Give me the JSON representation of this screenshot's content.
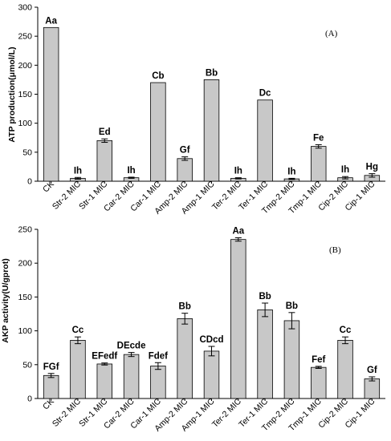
{
  "chart_data": [
    {
      "type": "bar",
      "panel_label": "(A)",
      "ylabel": "ATP production(μmol/L)",
      "ylim": [
        0,
        300
      ],
      "yticks": [
        "0",
        "50",
        "100",
        "150",
        "200",
        "250",
        "300"
      ],
      "categories": [
        "CK",
        "Str-2 MIC",
        "Str-1 MIC",
        "Car-2 MIC",
        "Car-1 MIC",
        "Amp-2 MIC",
        "Amp-1 MIC",
        "Ter-2 MIC",
        "Ter-1 MIC",
        "Tmp-2 MIC",
        "Tmp-1 MIC",
        "Cip-2 MIC",
        "Cip-1 MIC"
      ],
      "values": [
        265,
        5,
        70,
        6,
        170,
        39,
        175,
        5,
        140,
        4,
        60,
        6,
        10
      ],
      "errors": [
        0,
        1.5,
        3,
        1,
        0,
        3,
        0,
        1,
        0,
        1,
        3,
        2,
        3
      ],
      "letters": [
        "Aa",
        "Ih",
        "Ed",
        "Ih",
        "Cb",
        "Gf",
        "Bb",
        "Ih",
        "Dc",
        "Ih",
        "Fe",
        "Ih",
        "Hg"
      ],
      "bar_color": "#c8c8c8"
    },
    {
      "type": "bar",
      "panel_label": "(B)",
      "ylabel": "AKP activity(U/gprot)",
      "ylim": [
        0,
        250
      ],
      "yticks": [
        "0",
        "50",
        "100",
        "150",
        "200",
        "250"
      ],
      "categories": [
        "CK",
        "Str-2 MIC",
        "Str-1 MIC",
        "Car-2 MIC",
        "Car-1 MIC",
        "Amp-2 MIC",
        "Amp-1 MIC",
        "Ter-2 MIC",
        "Ter-1 MIC",
        "Tmp-2 MIC",
        "Tmp-1 MIC",
        "Cip-2 MIC",
        "Cip-1 MIC"
      ],
      "values": [
        34,
        86,
        51,
        65,
        48,
        118,
        70,
        235,
        131,
        115,
        46,
        86,
        29
      ],
      "errors": [
        3,
        5,
        1.5,
        3,
        5,
        8,
        7,
        2.5,
        10,
        12,
        1.5,
        5,
        3
      ],
      "letters": [
        "FGf",
        "Cc",
        "EFedf",
        "DEcde",
        "Fdef",
        "Bb",
        "CDcd",
        "Aa",
        "Bb",
        "Bb",
        "Fef",
        "Cc",
        "Gf"
      ],
      "bar_color": "#c8c8c8"
    }
  ]
}
